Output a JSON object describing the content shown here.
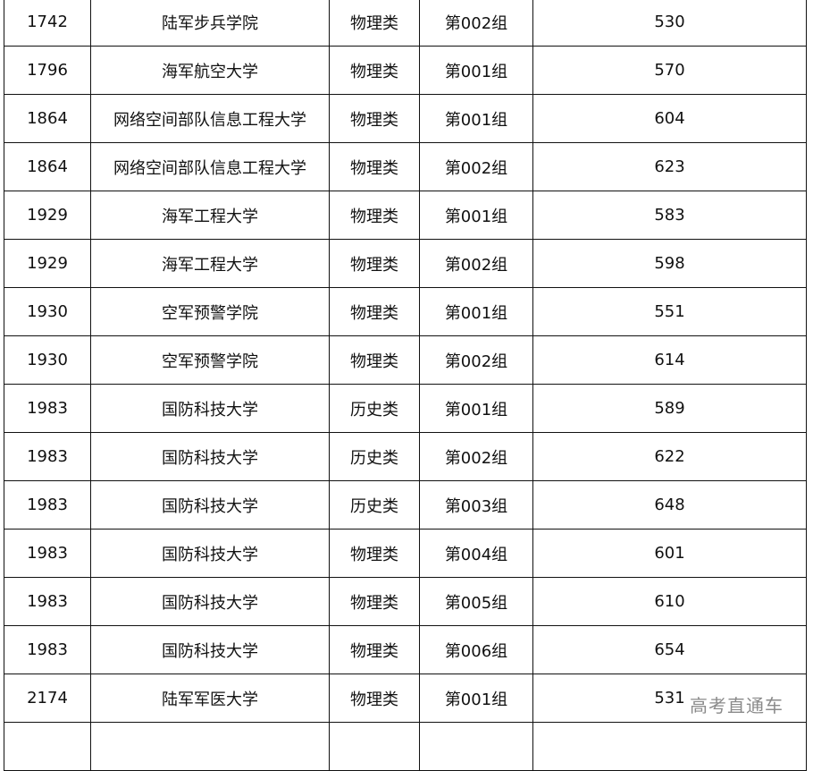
{
  "table": {
    "rows": [
      [
        "1742",
        "陆军步兵学院",
        "物理类",
        "第002组",
        "530"
      ],
      [
        "1796",
        "海军航空大学",
        "物理类",
        "第001组",
        "570"
      ],
      [
        "1864",
        "网络空间部队信息工程大学",
        "物理类",
        "第001组",
        "604"
      ],
      [
        "1864",
        "网络空间部队信息工程大学",
        "物理类",
        "第002组",
        "623"
      ],
      [
        "1929",
        "海军工程大学",
        "物理类",
        "第001组",
        "583"
      ],
      [
        "1929",
        "海军工程大学",
        "物理类",
        "第002组",
        "598"
      ],
      [
        "1930",
        "空军预警学院",
        "物理类",
        "第001组",
        "551"
      ],
      [
        "1930",
        "空军预警学院",
        "物理类",
        "第002组",
        "614"
      ],
      [
        "1983",
        "国防科技大学",
        "历史类",
        "第001组",
        "589"
      ],
      [
        "1983",
        "国防科技大学",
        "历史类",
        "第002组",
        "622"
      ],
      [
        "1983",
        "国防科技大学",
        "历史类",
        "第003组",
        "648"
      ],
      [
        "1983",
        "国防科技大学",
        "物理类",
        "第004组",
        "601"
      ],
      [
        "1983",
        "国防科技大学",
        "物理类",
        "第005组",
        "610"
      ],
      [
        "1983",
        "国防科技大学",
        "物理类",
        "第006组",
        "654"
      ],
      [
        "2174",
        "陆军军医大学",
        "物理类",
        "第001组",
        "531"
      ],
      [
        "",
        "",
        "",
        "",
        ""
      ]
    ]
  },
  "watermark": "高考直通车"
}
